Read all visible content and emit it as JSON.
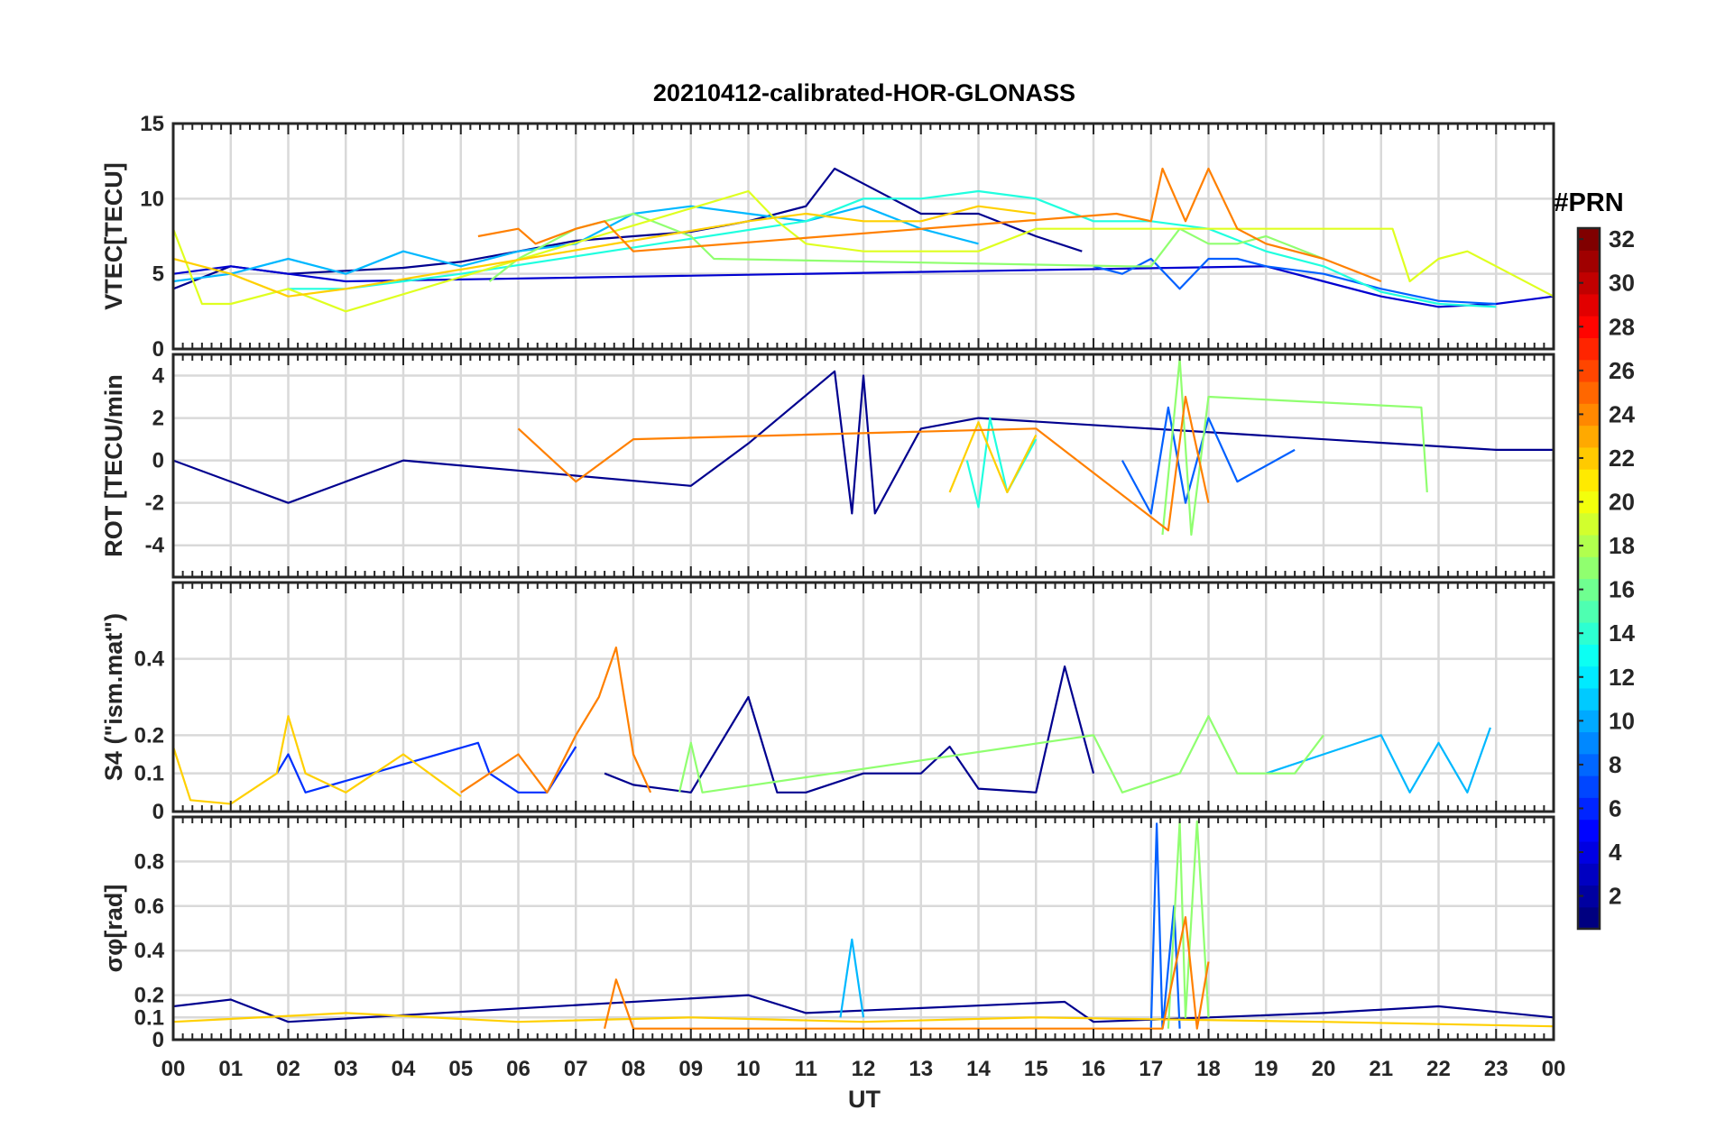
{
  "figure": {
    "title": "20210412-calibrated-HOR-GLONASS",
    "xlabel": "UT",
    "x_ticks": [
      "00",
      "01",
      "02",
      "03",
      "04",
      "05",
      "06",
      "07",
      "08",
      "09",
      "10",
      "11",
      "12",
      "13",
      "14",
      "15",
      "16",
      "17",
      "18",
      "19",
      "20",
      "21",
      "22",
      "23",
      "00"
    ]
  },
  "colorbar": {
    "title": "#PRN",
    "ticks": [
      "2",
      "4",
      "6",
      "8",
      "10",
      "12",
      "14",
      "16",
      "18",
      "20",
      "22",
      "24",
      "26",
      "28",
      "30",
      "32"
    ],
    "range": [
      1,
      32
    ],
    "colormap": "jet"
  },
  "chart_data": [
    {
      "type": "line",
      "ylabel": "VTEC[TECU]",
      "xlim": [
        0,
        24
      ],
      "ylim": [
        0,
        15
      ],
      "y_ticks": [
        "0",
        "5",
        "10",
        "15"
      ],
      "grid": true,
      "series": [
        {
          "prn": 2,
          "color": "#00008f",
          "x": [
            0,
            1,
            2,
            3,
            4,
            5,
            6,
            7,
            8,
            9,
            10,
            11,
            11.5,
            12,
            13,
            14,
            15,
            15.8
          ],
          "y": [
            4.0,
            5.5,
            5.0,
            5.2,
            5.4,
            5.8,
            6.5,
            7.2,
            7.5,
            7.8,
            8.5,
            9.5,
            12.0,
            11.0,
            9.0,
            9.0,
            7.5,
            6.5
          ]
        },
        {
          "prn": 4,
          "color": "#0000d0",
          "x": [
            0,
            1,
            2,
            3,
            19,
            20,
            21,
            22,
            23,
            24
          ],
          "y": [
            5.0,
            5.5,
            5.0,
            4.5,
            5.5,
            4.5,
            3.5,
            2.8,
            3.0,
            3.5
          ]
        },
        {
          "prn": 8,
          "color": "#0060ff",
          "x": [
            16,
            16.5,
            17,
            17.5,
            18,
            18.5,
            19,
            20,
            21,
            22,
            23
          ],
          "y": [
            5.5,
            5.0,
            6.0,
            4.0,
            6.0,
            6.0,
            5.5,
            5.0,
            4.0,
            3.2,
            3.0
          ]
        },
        {
          "prn": 11,
          "color": "#00b8ff",
          "x": [
            0,
            1,
            2,
            3,
            4,
            5,
            6,
            7,
            8,
            9,
            10,
            11,
            12,
            13,
            14
          ],
          "y": [
            4.5,
            5.0,
            6.0,
            5.0,
            6.5,
            5.5,
            6.5,
            7.0,
            9.0,
            9.5,
            9.0,
            8.5,
            9.5,
            8.0,
            7.0
          ]
        },
        {
          "prn": 14,
          "color": "#20ffdf",
          "x": [
            2,
            3,
            4,
            5,
            11,
            12,
            13,
            14,
            15,
            16,
            17,
            18,
            19,
            20,
            21,
            22,
            23
          ],
          "y": [
            4.0,
            4.0,
            4.5,
            5.0,
            8.5,
            10.0,
            10.0,
            10.5,
            10.0,
            8.5,
            8.5,
            8.0,
            6.5,
            5.5,
            3.8,
            3.0,
            2.8
          ]
        },
        {
          "prn": 16,
          "color": "#90ff70",
          "x": [
            5.5,
            6,
            7,
            8,
            9,
            9.4,
            16.6,
            17,
            17.5,
            18,
            18.5,
            19,
            20
          ],
          "y": [
            4.5,
            6.0,
            8.0,
            9.0,
            7.5,
            6.0,
            5.5,
            5.5,
            8.0,
            7.0,
            7.0,
            7.5,
            6.0
          ]
        },
        {
          "prn": 19,
          "color": "#dfff20",
          "x": [
            0,
            0.5,
            1,
            2,
            3,
            10,
            10.5,
            11,
            12,
            13,
            14,
            15,
            21.2,
            21.5,
            22,
            22.5,
            23,
            24
          ],
          "y": [
            8.0,
            3.0,
            3.0,
            4.0,
            2.5,
            10.5,
            8.5,
            7.0,
            6.5,
            6.5,
            6.5,
            8.0,
            8.0,
            4.5,
            6.0,
            6.5,
            5.5,
            3.5
          ]
        },
        {
          "prn": 21,
          "color": "#ffd000",
          "x": [
            0,
            1,
            2,
            3,
            10,
            11,
            12,
            13,
            14,
            15
          ],
          "y": [
            6.0,
            5.0,
            3.5,
            4.0,
            8.5,
            9.0,
            8.5,
            8.5,
            9.5,
            9.0
          ]
        },
        {
          "prn": 23,
          "color": "#ff8000",
          "x": [
            5.3,
            6,
            6.3,
            7,
            7.5,
            8,
            16.4,
            17,
            17.2,
            17.6,
            18,
            18.5,
            19,
            20,
            21
          ],
          "y": [
            7.5,
            8.0,
            7.0,
            8.0,
            8.5,
            6.5,
            9.0,
            8.5,
            12.0,
            8.5,
            12.0,
            8.0,
            7.0,
            6.0,
            4.5
          ]
        }
      ]
    },
    {
      "type": "line",
      "ylabel": "ROT [TECU/min",
      "xlim": [
        0,
        24
      ],
      "ylim": [
        -5.5,
        5.0
      ],
      "y_ticks": [
        "-4",
        "-2",
        "0",
        "2",
        "4"
      ],
      "grid": true,
      "series": [
        {
          "prn": 2,
          "color": "#00008f",
          "x": [
            0,
            2,
            4,
            9,
            10,
            11.5,
            11.8,
            12,
            12.2,
            13,
            14,
            23,
            24
          ],
          "y": [
            0,
            -2.0,
            0,
            -1.2,
            0.8,
            4.2,
            -2.5,
            4.0,
            -2.5,
            1.5,
            2.0,
            0.5,
            0.5
          ]
        },
        {
          "prn": 8,
          "color": "#0060ff",
          "x": [
            16.5,
            17,
            17.3,
            17.6,
            18,
            18.5,
            19.5
          ],
          "y": [
            0,
            -2.5,
            2.5,
            -2.0,
            2.0,
            -1.0,
            0.5
          ]
        },
        {
          "prn": 14,
          "color": "#20ffdf",
          "x": [
            13.8,
            14,
            14.2,
            14.5,
            15
          ],
          "y": [
            0,
            -2.2,
            2.0,
            -1.5,
            1.0
          ]
        },
        {
          "prn": 17,
          "color": "#90ff70",
          "x": [
            17.2,
            17.5,
            17.7,
            18,
            21.7,
            21.8
          ],
          "y": [
            -3.5,
            4.8,
            -3.5,
            3.0,
            2.5,
            -1.5
          ]
        },
        {
          "prn": 21,
          "color": "#ffd000",
          "x": [
            13.5,
            14,
            14.5,
            15
          ],
          "y": [
            -1.5,
            1.8,
            -1.5,
            1.2
          ]
        },
        {
          "prn": 23,
          "color": "#ff8000",
          "x": [
            6,
            7,
            8,
            15,
            17.3,
            17.6,
            18
          ],
          "y": [
            1.5,
            -1.0,
            1.0,
            1.5,
            -3.3,
            3.0,
            -2.0
          ]
        }
      ]
    },
    {
      "type": "line",
      "ylabel": "S4 (\"ism.mat\")",
      "xlim": [
        0,
        24
      ],
      "ylim": [
        0,
        0.6
      ],
      "y_ticks": [
        "0",
        "0.1",
        "0.2",
        "0.4"
      ],
      "grid": true,
      "series": [
        {
          "prn": 2,
          "color": "#00008f",
          "x": [
            7.5,
            8,
            9,
            10,
            10.5,
            11,
            12,
            13,
            13.5,
            14,
            15,
            15.5,
            16
          ],
          "y": [
            0.1,
            0.07,
            0.05,
            0.3,
            0.05,
            0.05,
            0.1,
            0.1,
            0.17,
            0.06,
            0.05,
            0.38,
            0.1
          ]
        },
        {
          "prn": 6,
          "color": "#0030ff",
          "x": [
            1.8,
            2,
            2.3,
            5.3,
            5.5,
            6,
            6.5,
            7
          ],
          "y": [
            0.1,
            0.15,
            0.05,
            0.18,
            0.1,
            0.05,
            0.05,
            0.17
          ]
        },
        {
          "prn": 11,
          "color": "#00b8ff",
          "x": [
            19,
            20,
            21,
            21.5,
            22,
            22.5,
            22.9
          ],
          "y": [
            0.1,
            0.15,
            0.2,
            0.05,
            0.18,
            0.05,
            0.22
          ]
        },
        {
          "prn": 16,
          "color": "#90ff70",
          "x": [
            8.8,
            9,
            9.2,
            16,
            16.5,
            17.5,
            18,
            18.5,
            19.5,
            20
          ],
          "y": [
            0.05,
            0.18,
            0.05,
            0.2,
            0.05,
            0.1,
            0.25,
            0.1,
            0.1,
            0.2
          ]
        },
        {
          "prn": 21,
          "color": "#ffd000",
          "x": [
            0,
            0.3,
            1,
            1.8,
            2,
            2.3,
            3,
            3.5,
            4,
            5
          ],
          "y": [
            0.17,
            0.03,
            0.02,
            0.1,
            0.25,
            0.1,
            0.05,
            0.1,
            0.15,
            0.04
          ]
        },
        {
          "prn": 23,
          "color": "#ff8000",
          "x": [
            5,
            5.5,
            6,
            6.5,
            7,
            7.4,
            7.7,
            8,
            8.3
          ],
          "y": [
            0.05,
            0.1,
            0.15,
            0.05,
            0.2,
            0.3,
            0.43,
            0.15,
            0.05
          ]
        }
      ]
    },
    {
      "type": "line",
      "ylabel": "σφ[rad]",
      "xlim": [
        0,
        24
      ],
      "ylim": [
        0,
        1.0
      ],
      "y_ticks": [
        "0",
        "0.1",
        "0.2",
        "0.4",
        "0.6",
        "0.8"
      ],
      "grid": true,
      "series": [
        {
          "prn": 2,
          "color": "#00008f",
          "x": [
            0,
            1,
            2,
            10,
            11,
            15.5,
            16,
            18,
            20,
            22,
            24
          ],
          "y": [
            0.15,
            0.18,
            0.08,
            0.2,
            0.12,
            0.17,
            0.08,
            0.1,
            0.12,
            0.15,
            0.1
          ]
        },
        {
          "prn": 8,
          "color": "#0060ff",
          "x": [
            17,
            17.1,
            17.2,
            17.4,
            17.5
          ],
          "y": [
            0.05,
            0.97,
            0.05,
            0.6,
            0.05
          ]
        },
        {
          "prn": 11,
          "color": "#00b8ff",
          "x": [
            11.6,
            11.8,
            12
          ],
          "y": [
            0.1,
            0.45,
            0.1
          ]
        },
        {
          "prn": 17,
          "color": "#90ff70",
          "x": [
            17.3,
            17.5,
            17.6,
            17.8,
            18
          ],
          "y": [
            0.05,
            0.98,
            0.1,
            0.98,
            0.1
          ]
        },
        {
          "prn": 21,
          "color": "#ffd000",
          "x": [
            0,
            3,
            6,
            9,
            12,
            15,
            20,
            24
          ],
          "y": [
            0.08,
            0.12,
            0.08,
            0.1,
            0.08,
            0.1,
            0.08,
            0.06
          ]
        },
        {
          "prn": 23,
          "color": "#ff8000",
          "x": [
            7.5,
            7.7,
            8,
            17.2,
            17.6,
            17.8,
            18
          ],
          "y": [
            0.05,
            0.27,
            0.05,
            0.05,
            0.55,
            0.05,
            0.35
          ]
        }
      ]
    }
  ]
}
